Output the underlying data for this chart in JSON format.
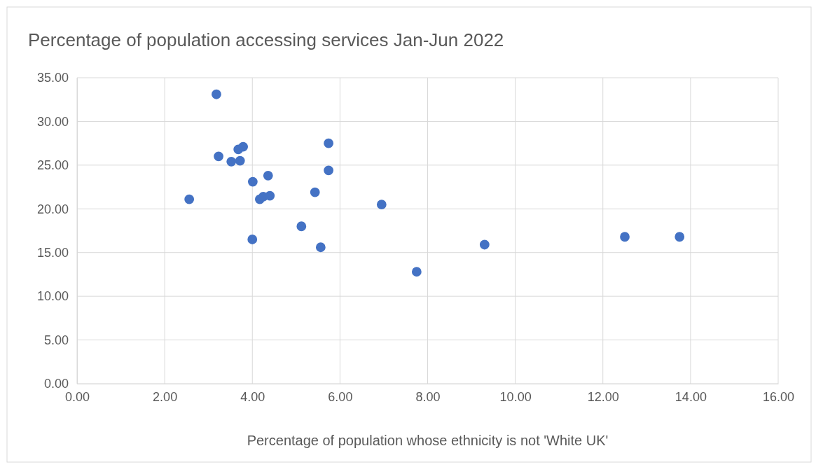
{
  "chart_data": {
    "type": "scatter",
    "title": "Percentage of population accessing services Jan-Jun 2022",
    "xlabel": "Percentage of population whose ethnicity is not 'White UK'",
    "x": [
      3.18,
      3.23,
      3.52,
      3.68,
      3.79,
      3.72,
      2.56,
      4.01,
      4.36,
      4.17,
      4.25,
      4.4,
      4.0,
      5.12,
      5.43,
      5.56,
      5.74,
      5.74,
      6.95,
      7.75,
      9.3,
      12.5,
      13.75
    ],
    "series": [
      {
        "color": "#4472c4",
        "values": [
          33.1,
          26.0,
          25.4,
          26.8,
          27.1,
          25.5,
          21.1,
          23.1,
          23.8,
          21.1,
          21.4,
          21.5,
          16.5,
          18.0,
          21.9,
          15.6,
          27.5,
          24.4,
          20.5,
          12.8,
          15.9,
          16.8,
          16.8
        ]
      }
    ],
    "xlim": [
      0,
      16
    ],
    "ylim": [
      0,
      35
    ],
    "xticks": [
      {
        "value": 0,
        "label": "0.00"
      },
      {
        "value": 2,
        "label": "2.00"
      },
      {
        "value": 4,
        "label": "4.00"
      },
      {
        "value": 6,
        "label": "6.00"
      },
      {
        "value": 8,
        "label": "8.00"
      },
      {
        "value": 10,
        "label": "10.00"
      },
      {
        "value": 12,
        "label": "12.00"
      },
      {
        "value": 14,
        "label": "14.00"
      },
      {
        "value": 16,
        "label": "16.00"
      }
    ],
    "yticks": [
      {
        "value": 0,
        "label": "0.00"
      },
      {
        "value": 5,
        "label": "5.00"
      },
      {
        "value": 10,
        "label": "10.00"
      },
      {
        "value": 15,
        "label": "15.00"
      },
      {
        "value": 20,
        "label": "20.00"
      },
      {
        "value": 25,
        "label": "25.00"
      },
      {
        "value": 30,
        "label": "30.00"
      },
      {
        "value": 35,
        "label": "35.00"
      }
    ],
    "grid": true,
    "marker": "circle"
  }
}
